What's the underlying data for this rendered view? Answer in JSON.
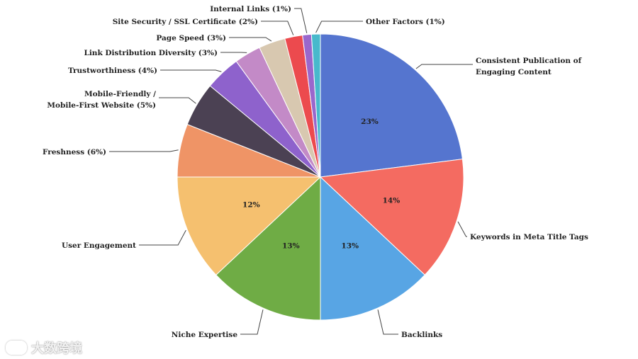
{
  "chart_data": {
    "type": "pie",
    "title": "",
    "slices": [
      {
        "label": "Consistent Publication of",
        "label2": "Engaging Content",
        "value": 23,
        "color": "#5575cf",
        "display": "23%"
      },
      {
        "label": "Keywords in Meta Title Tags",
        "label2": "",
        "value": 14,
        "color": "#f46b61",
        "display": "14%"
      },
      {
        "label": "Backlinks",
        "label2": "",
        "value": 13,
        "color": "#58a5e4",
        "display": "13%"
      },
      {
        "label": "Niche Expertise",
        "label2": "",
        "value": 13,
        "color": "#6fac45",
        "display": "13%"
      },
      {
        "label": "User Engagement",
        "label2": "",
        "value": 12,
        "color": "#f5c06f",
        "display": "12%"
      },
      {
        "label": "Freshness (6%)",
        "label2": "",
        "value": 6,
        "color": "#ef9466",
        "display": ""
      },
      {
        "label": "Mobile-Friendly /",
        "label2": "Mobile-First Website (5%)",
        "value": 5,
        "color": "#4b4153",
        "display": ""
      },
      {
        "label": "Trustworthiness (4%)",
        "label2": "",
        "value": 4,
        "color": "#8e62cc",
        "display": ""
      },
      {
        "label": "Link Distribution Diversity (3%)",
        "label2": "",
        "value": 3,
        "color": "#c38ac7",
        "display": ""
      },
      {
        "label": "Page Speed (3%)",
        "label2": "",
        "value": 3,
        "color": "#d8c8b0",
        "display": ""
      },
      {
        "label": "Site Security / SSL Certificate (2%)",
        "label2": "",
        "value": 2,
        "color": "#ec4a4e",
        "display": ""
      },
      {
        "label": "Internal Links (1%)",
        "label2": "",
        "value": 1,
        "color": "#9a67cc",
        "display": ""
      },
      {
        "label": "Other Factors (1%)",
        "label2": "",
        "value": 1,
        "color": "#48b9cc",
        "display": ""
      }
    ]
  },
  "watermark": {
    "text": "大数跨境"
  }
}
